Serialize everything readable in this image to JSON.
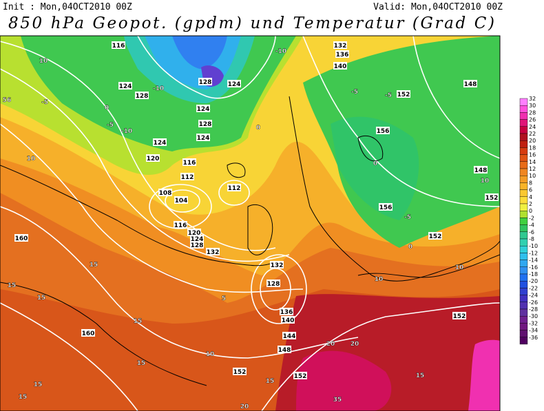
{
  "header": {
    "init": "Init : Mon,04OCT2010 00Z",
    "valid": "Valid: Mon,04OCT2010 00Z",
    "title": "850 hPa Geopot. (gpdm) und Temperatur (Grad C)"
  },
  "contour_labels": [
    "116",
    "10",
    "-10",
    "132",
    "136",
    "140",
    "128",
    "124",
    "124",
    "128",
    "-10",
    "-5",
    "-5",
    "152",
    "148",
    "56",
    "-5",
    "0",
    "-5",
    "-10",
    "124",
    "128",
    "124",
    "0",
    "156",
    "0",
    "124",
    "120",
    "10",
    "116",
    "112",
    "148",
    "10",
    "152",
    "112",
    "108",
    "104",
    "116",
    "120",
    "124",
    "128",
    "132",
    "160",
    "156",
    "-5",
    "152",
    "0",
    "15",
    "132",
    "128",
    "15",
    "15",
    "10",
    "10",
    "136",
    "140",
    "15",
    "160",
    "152",
    "144",
    "148",
    "20",
    "20",
    "15",
    "152",
    "152",
    "15",
    "15",
    "15",
    "15",
    "20",
    "35",
    "10",
    "5"
  ],
  "colorbar": [
    {
      "value": 32,
      "color": "#ff80ff"
    },
    {
      "value": 30,
      "color": "#ff50dc"
    },
    {
      "value": 28,
      "color": "#f030b0"
    },
    {
      "value": 26,
      "color": "#e01478"
    },
    {
      "value": 24,
      "color": "#c80040"
    },
    {
      "value": 22,
      "color": "#b01020"
    },
    {
      "value": 20,
      "color": "#c02010"
    },
    {
      "value": 18,
      "color": "#d63c10"
    },
    {
      "value": 16,
      "color": "#e05414"
    },
    {
      "value": 14,
      "color": "#e86c18"
    },
    {
      "value": 12,
      "color": "#f08620"
    },
    {
      "value": 10,
      "color": "#f49c24"
    },
    {
      "value": 8,
      "color": "#f8b428"
    },
    {
      "value": 6,
      "color": "#fac830"
    },
    {
      "value": 4,
      "color": "#fcdc38"
    },
    {
      "value": 2,
      "color": "#f0f040"
    },
    {
      "value": 0,
      "color": "#b0e030"
    },
    {
      "value": -2,
      "color": "#40d040"
    },
    {
      "value": -4,
      "color": "#30c460"
    },
    {
      "value": -6,
      "color": "#30c890"
    },
    {
      "value": -8,
      "color": "#30d0b0"
    },
    {
      "value": -10,
      "color": "#30d0d8"
    },
    {
      "value": -12,
      "color": "#30c0ec"
    },
    {
      "value": -14,
      "color": "#30a8f0"
    },
    {
      "value": -16,
      "color": "#3090f0"
    },
    {
      "value": -18,
      "color": "#2070f0"
    },
    {
      "value": -20,
      "color": "#2050e0"
    },
    {
      "value": -22,
      "color": "#3040d0"
    },
    {
      "value": -24,
      "color": "#4030c0"
    },
    {
      "value": -26,
      "color": "#5030b0"
    },
    {
      "value": -28,
      "color": "#6030a0"
    },
    {
      "value": -30,
      "color": "#702090"
    },
    {
      "value": -32,
      "color": "#701880"
    },
    {
      "value": -34,
      "color": "#601070"
    },
    {
      "value": -36,
      "color": "#500060"
    }
  ]
}
